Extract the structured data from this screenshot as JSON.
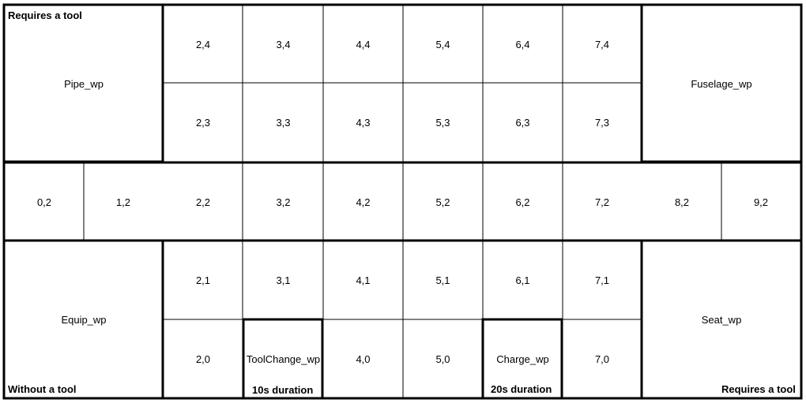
{
  "cells": {
    "c2_4": "2,4",
    "c3_4": "3,4",
    "c4_4": "4,4",
    "c5_4": "5,4",
    "c6_4": "6,4",
    "c7_4": "7,4",
    "c2_3": "2,3",
    "c3_3": "3,3",
    "c4_3": "4,3",
    "c5_3": "5,3",
    "c6_3": "6,3",
    "c7_3": "7,3",
    "c0_2": "0,2",
    "c1_2": "1,2",
    "c2_2": "2,2",
    "c3_2": "3,2",
    "c4_2": "4,2",
    "c5_2": "5,2",
    "c6_2": "6,2",
    "c7_2": "7,2",
    "c8_2": "8,2",
    "c9_2": "9,2",
    "c2_1": "2,1",
    "c3_1": "3,1",
    "c4_1": "4,1",
    "c5_1": "5,1",
    "c6_1": "6,1",
    "c7_1": "7,1",
    "c2_0": "2,0",
    "c4_0": "4,0",
    "c5_0": "5,0",
    "c7_0": "7,0"
  },
  "workplaces": {
    "pipe": "Pipe_wp",
    "fuselage": "Fuselage_wp",
    "equip": "Equip_wp",
    "seat": "Seat_wp",
    "toolchange": "ToolChange_wp",
    "charge": "Charge_wp"
  },
  "notes": {
    "pipe_req": "Requires a tool",
    "equip_req": "Without a tool",
    "seat_req": "Requires a tool",
    "toolchange_dur": "10s duration",
    "charge_dur": "20s duration"
  }
}
